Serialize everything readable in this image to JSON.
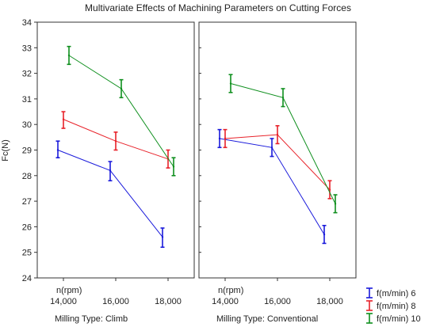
{
  "chart_data": {
    "type": "line",
    "title": "Multivariate Effects of Machining Parameters on Cutting Forces",
    "ylabel": "Fc(N)",
    "ylim": [
      24,
      34
    ],
    "yticks": [
      24,
      25,
      26,
      27,
      28,
      29,
      30,
      31,
      32,
      33,
      34
    ],
    "xlim": [
      13000,
      19000
    ],
    "x_axis_title": "n(rpm)",
    "x": [
      14000,
      16000,
      18000
    ],
    "x_tick_labels": [
      "14,000",
      "16,000",
      "18,000"
    ],
    "grid": false,
    "error_bars": true,
    "legend_position": "bottom-right",
    "series": [
      {
        "name": "f(m/min) 6",
        "color": "#1a1adb"
      },
      {
        "name": "f(m/min) 8",
        "color": "#e8222a"
      },
      {
        "name": "f(m/min) 10",
        "color": "#0f8f1e"
      }
    ],
    "panels": [
      {
        "label": "Milling Type: Climb",
        "series_values": [
          {
            "mean": [
              29.0,
              28.2,
              25.6
            ],
            "lower": [
              28.7,
              27.8,
              25.2
            ],
            "upper": [
              29.35,
              28.55,
              25.95
            ]
          },
          {
            "mean": [
              30.2,
              29.35,
              28.65
            ],
            "lower": [
              29.85,
              29.0,
              28.3
            ],
            "upper": [
              30.5,
              29.7,
              29.0
            ]
          },
          {
            "mean": [
              32.7,
              31.4,
              28.35
            ],
            "lower": [
              32.35,
              31.05,
              28.0
            ],
            "upper": [
              33.05,
              31.75,
              28.7
            ]
          }
        ]
      },
      {
        "label": "Milling Type: Conventional",
        "series_values": [
          {
            "mean": [
              29.45,
              29.1,
              25.7
            ],
            "lower": [
              29.1,
              28.75,
              25.35
            ],
            "upper": [
              29.8,
              29.45,
              26.05
            ]
          },
          {
            "mean": [
              29.45,
              29.6,
              27.45
            ],
            "lower": [
              29.1,
              29.25,
              27.1
            ],
            "upper": [
              29.8,
              29.95,
              27.8
            ]
          },
          {
            "mean": [
              31.6,
              31.05,
              26.9
            ],
            "lower": [
              31.25,
              30.7,
              26.55
            ],
            "upper": [
              31.95,
              31.4,
              27.25
            ]
          }
        ]
      }
    ]
  }
}
